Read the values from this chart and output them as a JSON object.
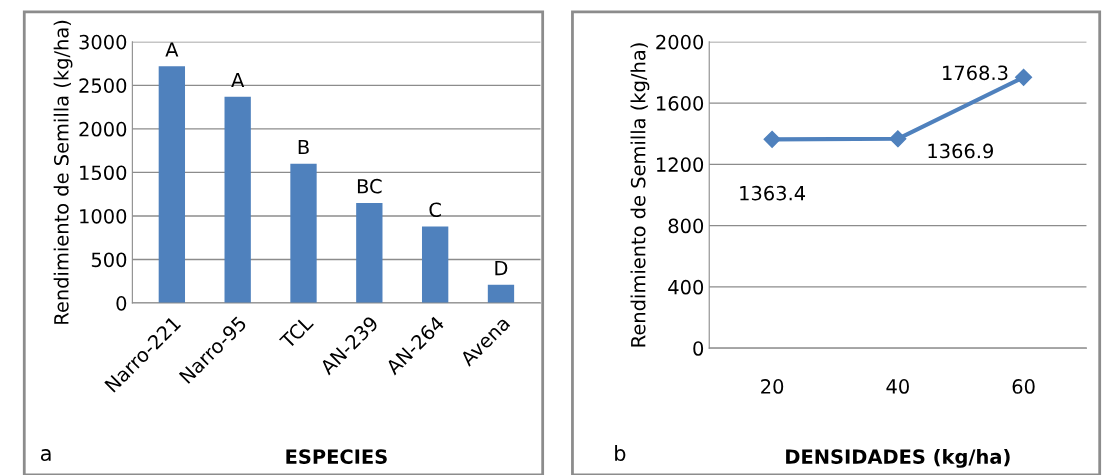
{
  "chart_data": [
    {
      "type": "bar",
      "categories": [
        "Narro-221",
        "Narro-95",
        "TCL",
        "AN-239",
        "AN-264",
        "Avena"
      ],
      "values": [
        2720,
        2370,
        1600,
        1150,
        880,
        210
      ],
      "color": "#4f81bd",
      "ylim": [
        0,
        3000
      ],
      "yticks": [
        0,
        500,
        1000,
        1500,
        2000,
        2500,
        3000
      ],
      "grid": "y",
      "xlabel": "ESPECIES",
      "ylabel": "Rendimiento de Semilla (kg/ha)",
      "annotations": [
        "a",
        {
          "text": "A",
          "x": "Narro-221",
          "y": 2720
        },
        {
          "text": "A",
          "x": "Narro-95",
          "y": 2370
        },
        {
          "text": "B",
          "x": "TCL",
          "y": 1600
        },
        {
          "text": "BC",
          "x": "AN-239",
          "y": 1150
        },
        {
          "text": "C",
          "x": "AN-264",
          "y": 880
        },
        {
          "text": "D",
          "x": "Avena",
          "y": 210
        }
      ]
    },
    {
      "type": "line",
      "categories": [
        "20",
        "40",
        "60"
      ],
      "values": [
        1363.4,
        1366.9,
        1768.3
      ],
      "color": "#4f81bd",
      "marker": "diamond",
      "data_labels": true,
      "ylim": [
        0,
        2000
      ],
      "yticks": [
        0,
        400,
        800,
        1200,
        1600,
        2000
      ],
      "grid": "y",
      "xlabel": "DENSIDADES (kg/ha)",
      "ylabel": "Rendimiento de Semilla (kg/ha)",
      "annotations": [
        "b"
      ]
    }
  ]
}
